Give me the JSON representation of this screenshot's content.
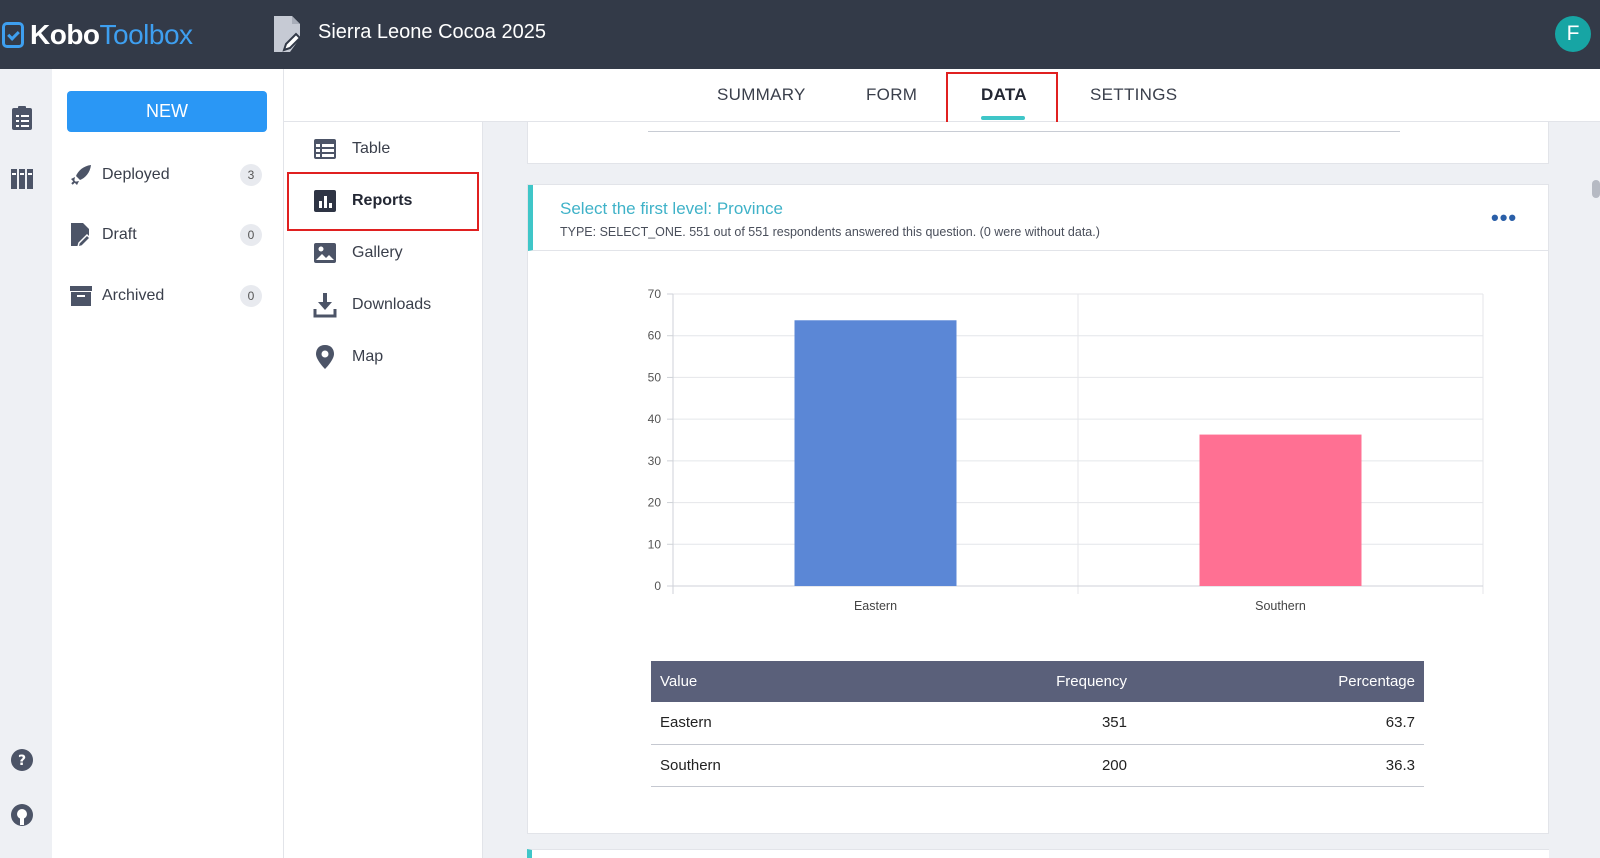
{
  "brand": {
    "kobo": "Kobo",
    "toolbox": "Toolbox",
    "accent": "#3e9ff0"
  },
  "project": {
    "title": "Sierra Leone Cocoa 2025",
    "icon": "deployed-form-icon"
  },
  "user": {
    "avatar_letter": "F",
    "avatar_color": "#17a5a4"
  },
  "rail": {
    "icons": [
      "projects-icon",
      "library-icon",
      "help-icon",
      "github-icon"
    ]
  },
  "sidebar": {
    "new_label": "NEW",
    "items": [
      {
        "label": "Deployed",
        "count": "3",
        "icon": "rocket-icon"
      },
      {
        "label": "Draft",
        "count": "0",
        "icon": "draft-icon"
      },
      {
        "label": "Archived",
        "count": "0",
        "icon": "archive-icon"
      }
    ]
  },
  "tabs": [
    {
      "label": "SUMMARY",
      "active": false
    },
    {
      "label": "FORM",
      "active": false
    },
    {
      "label": "DATA",
      "active": true
    },
    {
      "label": "SETTINGS",
      "active": false
    }
  ],
  "data_nav": [
    {
      "label": "Table",
      "icon": "table-icon",
      "active": false
    },
    {
      "label": "Reports",
      "icon": "reports-icon",
      "active": true
    },
    {
      "label": "Gallery",
      "icon": "gallery-icon",
      "active": false
    },
    {
      "label": "Downloads",
      "icon": "download-icon",
      "active": false
    },
    {
      "label": "Map",
      "icon": "map-pin-icon",
      "active": false
    }
  ],
  "report": {
    "question_title": "Select the first level: Province",
    "question_meta": "TYPE: SELECT_ONE. 551 out of 551 respondents answered this question. (0 were without data.)",
    "table": {
      "headers": [
        "Value",
        "Frequency",
        "Percentage"
      ],
      "rows": [
        [
          "Eastern",
          "351",
          "63.7"
        ],
        [
          "Southern",
          "200",
          "36.3"
        ]
      ]
    }
  },
  "chart_data": {
    "type": "bar",
    "categories": [
      "Eastern",
      "Southern"
    ],
    "values": [
      63.7,
      36.3
    ],
    "colors": [
      "#5b87d6",
      "#ff7093"
    ],
    "ylim": [
      0,
      70
    ],
    "yticks": [
      0,
      10,
      20,
      30,
      40,
      50,
      60,
      70
    ],
    "grid": true,
    "title": "",
    "xlabel": "",
    "ylabel": ""
  }
}
